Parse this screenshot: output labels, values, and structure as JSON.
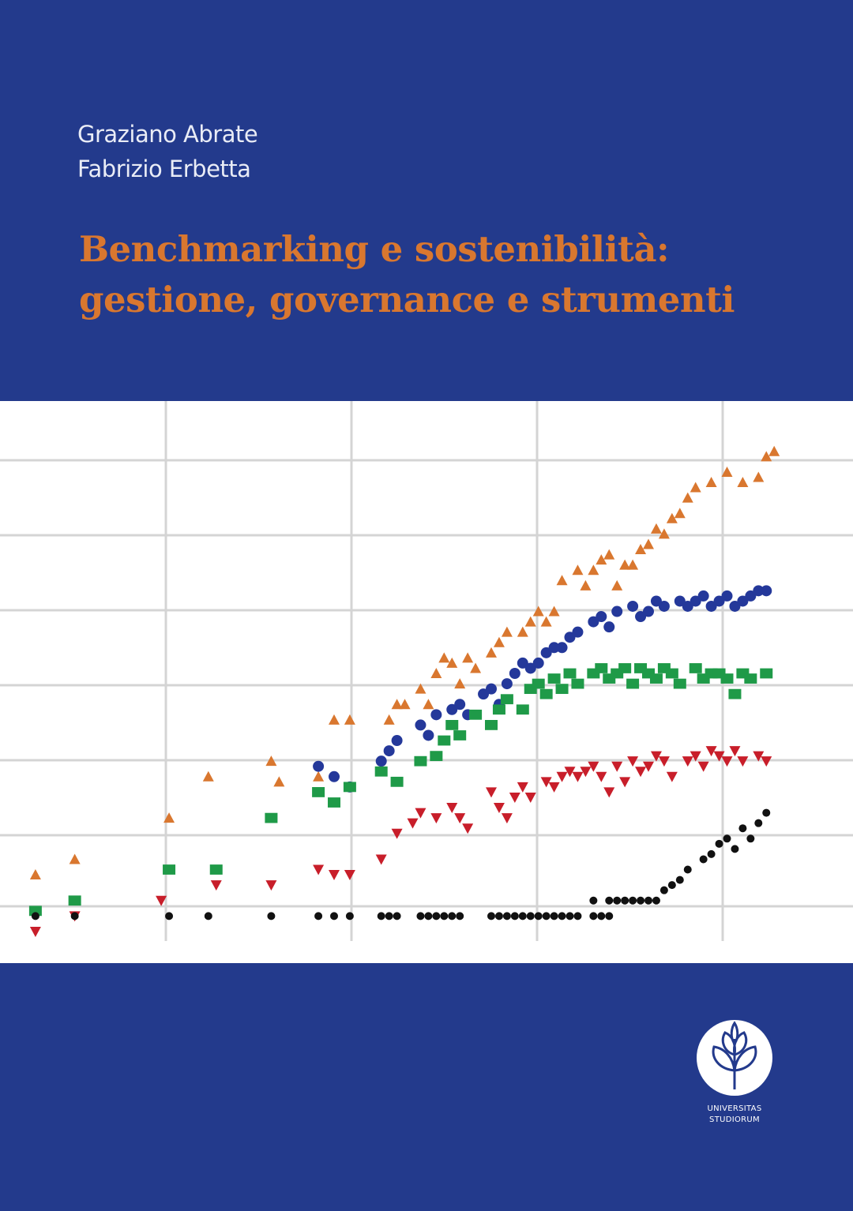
{
  "cover": {
    "authors": [
      "Graziano Abrate",
      "Fabrizio Erbetta"
    ],
    "title_lines": [
      "Benchmarking e sostenibilità:",
      "gestione, governance e strumenti"
    ],
    "publisher_logo_text": [
      "UNIVERSITAS",
      "STUDIORUM"
    ]
  },
  "colors": {
    "background": "#233a8c",
    "title": "#d9772f",
    "authors": "#e9ecf6",
    "plot_background": "#ffffff",
    "gridline": "#d4d4d4",
    "orange": "#d9772f",
    "blue": "#24389a",
    "green": "#1f9a48",
    "red": "#c81e2a",
    "black": "#111111"
  },
  "chart_data": {
    "type": "scatter",
    "title": "",
    "xlabel": "",
    "ylabel": "",
    "grid": true,
    "legend": "none",
    "xlim": [
      0,
      100
    ],
    "ylim": [
      0,
      100
    ],
    "series": [
      {
        "marker": "triangle-up",
        "color": "orange",
        "points": [
          [
            2,
            11
          ],
          [
            7,
            14
          ],
          [
            19,
            22
          ],
          [
            24,
            30
          ],
          [
            32,
            33
          ],
          [
            33,
            29
          ],
          [
            38,
            30
          ],
          [
            40,
            41
          ],
          [
            42,
            41
          ],
          [
            47,
            41
          ],
          [
            48,
            44
          ],
          [
            49,
            44
          ],
          [
            51,
            47
          ],
          [
            52,
            44
          ],
          [
            53,
            50
          ],
          [
            54,
            53
          ],
          [
            55,
            52
          ],
          [
            56,
            48
          ],
          [
            57,
            53
          ],
          [
            58,
            51
          ],
          [
            60,
            54
          ],
          [
            61,
            56
          ],
          [
            62,
            58
          ],
          [
            64,
            58
          ],
          [
            65,
            60
          ],
          [
            66,
            62
          ],
          [
            67,
            60
          ],
          [
            68,
            62
          ],
          [
            69,
            68
          ],
          [
            71,
            70
          ],
          [
            72,
            67
          ],
          [
            73,
            70
          ],
          [
            74,
            72
          ],
          [
            75,
            73
          ],
          [
            76,
            67
          ],
          [
            77,
            71
          ],
          [
            78,
            71
          ],
          [
            79,
            74
          ],
          [
            80,
            75
          ],
          [
            81,
            78
          ],
          [
            82,
            77
          ],
          [
            83,
            80
          ],
          [
            84,
            81
          ],
          [
            85,
            84
          ],
          [
            86,
            86
          ],
          [
            88,
            87
          ],
          [
            90,
            89
          ],
          [
            92,
            87
          ],
          [
            94,
            88
          ],
          [
            95,
            92
          ],
          [
            96,
            93
          ]
        ]
      },
      {
        "marker": "circle",
        "color": "blue",
        "points": [
          [
            38,
            32
          ],
          [
            40,
            30
          ],
          [
            42,
            28
          ],
          [
            46,
            33
          ],
          [
            47,
            35
          ],
          [
            48,
            37
          ],
          [
            51,
            40
          ],
          [
            52,
            38
          ],
          [
            53,
            42
          ],
          [
            55,
            43
          ],
          [
            56,
            44
          ],
          [
            57,
            42
          ],
          [
            59,
            46
          ],
          [
            60,
            47
          ],
          [
            61,
            44
          ],
          [
            62,
            48
          ],
          [
            63,
            50
          ],
          [
            64,
            52
          ],
          [
            65,
            51
          ],
          [
            66,
            52
          ],
          [
            67,
            54
          ],
          [
            68,
            55
          ],
          [
            69,
            55
          ],
          [
            70,
            57
          ],
          [
            71,
            58
          ],
          [
            73,
            60
          ],
          [
            74,
            61
          ],
          [
            75,
            59
          ],
          [
            76,
            62
          ],
          [
            78,
            63
          ],
          [
            79,
            61
          ],
          [
            80,
            62
          ],
          [
            81,
            64
          ],
          [
            82,
            63
          ],
          [
            84,
            64
          ],
          [
            85,
            63
          ],
          [
            86,
            64
          ],
          [
            87,
            65
          ],
          [
            88,
            63
          ],
          [
            89,
            64
          ],
          [
            90,
            65
          ],
          [
            91,
            63
          ],
          [
            92,
            64
          ],
          [
            93,
            65
          ],
          [
            94,
            66
          ],
          [
            95,
            66
          ]
        ]
      },
      {
        "marker": "square",
        "color": "green",
        "points": [
          [
            2,
            4
          ],
          [
            7,
            6
          ],
          [
            19,
            12
          ],
          [
            25,
            12
          ],
          [
            32,
            22
          ],
          [
            38,
            27
          ],
          [
            40,
            25
          ],
          [
            42,
            28
          ],
          [
            46,
            31
          ],
          [
            48,
            29
          ],
          [
            51,
            33
          ],
          [
            53,
            34
          ],
          [
            54,
            37
          ],
          [
            55,
            40
          ],
          [
            56,
            38
          ],
          [
            58,
            42
          ],
          [
            60,
            40
          ],
          [
            61,
            43
          ],
          [
            62,
            45
          ],
          [
            64,
            43
          ],
          [
            65,
            47
          ],
          [
            66,
            48
          ],
          [
            67,
            46
          ],
          [
            68,
            49
          ],
          [
            69,
            47
          ],
          [
            70,
            50
          ],
          [
            71,
            48
          ],
          [
            73,
            50
          ],
          [
            74,
            51
          ],
          [
            75,
            49
          ],
          [
            76,
            50
          ],
          [
            77,
            51
          ],
          [
            78,
            48
          ],
          [
            79,
            51
          ],
          [
            80,
            50
          ],
          [
            81,
            49
          ],
          [
            82,
            51
          ],
          [
            83,
            50
          ],
          [
            84,
            48
          ],
          [
            86,
            51
          ],
          [
            87,
            49
          ],
          [
            88,
            50
          ],
          [
            89,
            50
          ],
          [
            90,
            49
          ],
          [
            91,
            46
          ],
          [
            92,
            50
          ],
          [
            93,
            49
          ],
          [
            95,
            50
          ]
        ]
      },
      {
        "marker": "triangle-down",
        "color": "red",
        "points": [
          [
            2,
            0
          ],
          [
            7,
            3
          ],
          [
            18,
            6
          ],
          [
            25,
            9
          ],
          [
            32,
            9
          ],
          [
            38,
            12
          ],
          [
            40,
            11
          ],
          [
            42,
            11
          ],
          [
            46,
            14
          ],
          [
            48,
            19
          ],
          [
            50,
            21
          ],
          [
            51,
            23
          ],
          [
            53,
            22
          ],
          [
            55,
            24
          ],
          [
            56,
            22
          ],
          [
            57,
            20
          ],
          [
            60,
            27
          ],
          [
            61,
            24
          ],
          [
            62,
            22
          ],
          [
            63,
            26
          ],
          [
            64,
            28
          ],
          [
            65,
            26
          ],
          [
            67,
            29
          ],
          [
            68,
            28
          ],
          [
            69,
            30
          ],
          [
            70,
            31
          ],
          [
            71,
            30
          ],
          [
            72,
            31
          ],
          [
            73,
            32
          ],
          [
            74,
            30
          ],
          [
            75,
            27
          ],
          [
            76,
            32
          ],
          [
            77,
            29
          ],
          [
            78,
            33
          ],
          [
            79,
            31
          ],
          [
            80,
            32
          ],
          [
            81,
            34
          ],
          [
            82,
            33
          ],
          [
            83,
            30
          ],
          [
            85,
            33
          ],
          [
            86,
            34
          ],
          [
            87,
            32
          ],
          [
            88,
            35
          ],
          [
            89,
            34
          ],
          [
            90,
            33
          ],
          [
            91,
            35
          ],
          [
            92,
            33
          ],
          [
            94,
            34
          ],
          [
            95,
            33
          ]
        ]
      },
      {
        "marker": "circle",
        "color": "black",
        "points": [
          [
            2,
            3
          ],
          [
            7,
            3
          ],
          [
            19,
            3
          ],
          [
            24,
            3
          ],
          [
            32,
            3
          ],
          [
            38,
            3
          ],
          [
            40,
            3
          ],
          [
            42,
            3
          ],
          [
            46,
            3
          ],
          [
            47,
            3
          ],
          [
            48,
            3
          ],
          [
            51,
            3
          ],
          [
            52,
            3
          ],
          [
            53,
            3
          ],
          [
            54,
            3
          ],
          [
            55,
            3
          ],
          [
            56,
            3
          ],
          [
            60,
            3
          ],
          [
            61,
            3
          ],
          [
            62,
            3
          ],
          [
            63,
            3
          ],
          [
            64,
            3
          ],
          [
            65,
            3
          ],
          [
            66,
            3
          ],
          [
            67,
            3
          ],
          [
            68,
            3
          ],
          [
            69,
            3
          ],
          [
            70,
            3
          ],
          [
            71,
            3
          ],
          [
            73,
            3
          ],
          [
            74,
            3
          ],
          [
            75,
            3
          ],
          [
            73,
            6
          ],
          [
            75,
            6
          ],
          [
            76,
            6
          ],
          [
            77,
            6
          ],
          [
            78,
            6
          ],
          [
            79,
            6
          ],
          [
            80,
            6
          ],
          [
            81,
            6
          ],
          [
            82,
            8
          ],
          [
            83,
            9
          ],
          [
            84,
            10
          ],
          [
            85,
            12
          ],
          [
            87,
            14
          ],
          [
            88,
            15
          ],
          [
            89,
            17
          ],
          [
            90,
            18
          ],
          [
            91,
            16
          ],
          [
            92,
            20
          ],
          [
            93,
            18
          ],
          [
            94,
            21
          ],
          [
            95,
            23
          ]
        ]
      }
    ]
  }
}
